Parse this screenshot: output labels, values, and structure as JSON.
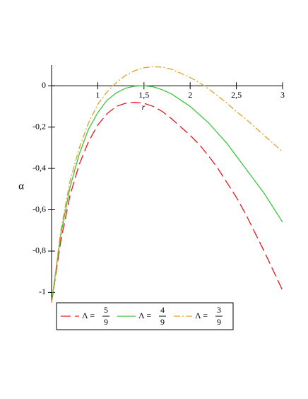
{
  "chart_data": {
    "type": "line",
    "x_label": "r",
    "y_label": "α",
    "x": [
      0.5,
      0.6,
      0.7,
      0.8,
      0.9,
      1.0,
      1.1,
      1.2,
      1.3,
      1.4,
      1.5,
      1.6,
      1.7,
      1.8,
      1.9,
      2.0,
      2.1,
      2.2,
      2.3,
      2.4,
      2.5,
      2.6,
      2.7,
      2.8,
      2.9,
      3.0
    ],
    "series": [
      {
        "name": "Λ =",
        "name_num": "5",
        "name_den": "9",
        "color": "#e8141c",
        "style": "dash",
        "values": [
          -1.05,
          -0.75,
          -0.53,
          -0.38,
          -0.27,
          -0.19,
          -0.135,
          -0.1,
          -0.085,
          -0.08,
          -0.085,
          -0.1,
          -0.125,
          -0.16,
          -0.2,
          -0.24,
          -0.285,
          -0.34,
          -0.4,
          -0.47,
          -0.54,
          -0.62,
          -0.71,
          -0.8,
          -0.895,
          -0.99
        ]
      },
      {
        "name": "Λ =",
        "name_num": "4",
        "name_den": "9",
        "color": "#3ec43e",
        "style": "solid",
        "values": [
          -1.05,
          -0.72,
          -0.49,
          -0.33,
          -0.21,
          -0.13,
          -0.07,
          -0.035,
          -0.012,
          -0.002,
          0,
          -0.005,
          -0.02,
          -0.04,
          -0.07,
          -0.1,
          -0.14,
          -0.18,
          -0.23,
          -0.28,
          -0.34,
          -0.4,
          -0.46,
          -0.52,
          -0.59,
          -0.66
        ]
      },
      {
        "name": "Λ =",
        "name_num": "3",
        "name_den": "9",
        "color": "#e0a030",
        "style": "dashdot",
        "values": [
          -1.05,
          -0.7,
          -0.46,
          -0.3,
          -0.18,
          -0.09,
          -0.03,
          0.015,
          0.05,
          0.073,
          0.087,
          0.092,
          0.09,
          0.08,
          0.06,
          0.04,
          0.015,
          -0.015,
          -0.05,
          -0.085,
          -0.125,
          -0.16,
          -0.2,
          -0.24,
          -0.28,
          -0.32
        ]
      }
    ],
    "xlim": [
      0.5,
      3
    ],
    "ylim": [
      -1.05,
      0.1
    ],
    "xticks": [
      1,
      {
        "value": 1.5,
        "label": "1,5"
      },
      2,
      {
        "value": 2.5,
        "label": "2,5"
      },
      3
    ],
    "yticks": [
      0,
      {
        "value": -0.2,
        "label": "-0,2"
      },
      {
        "value": -0.4,
        "label": "-0,4"
      },
      {
        "value": -0.6,
        "label": "-0,6"
      },
      {
        "value": -0.8,
        "label": "-0,8"
      },
      -1
    ],
    "legend": "bottom"
  }
}
